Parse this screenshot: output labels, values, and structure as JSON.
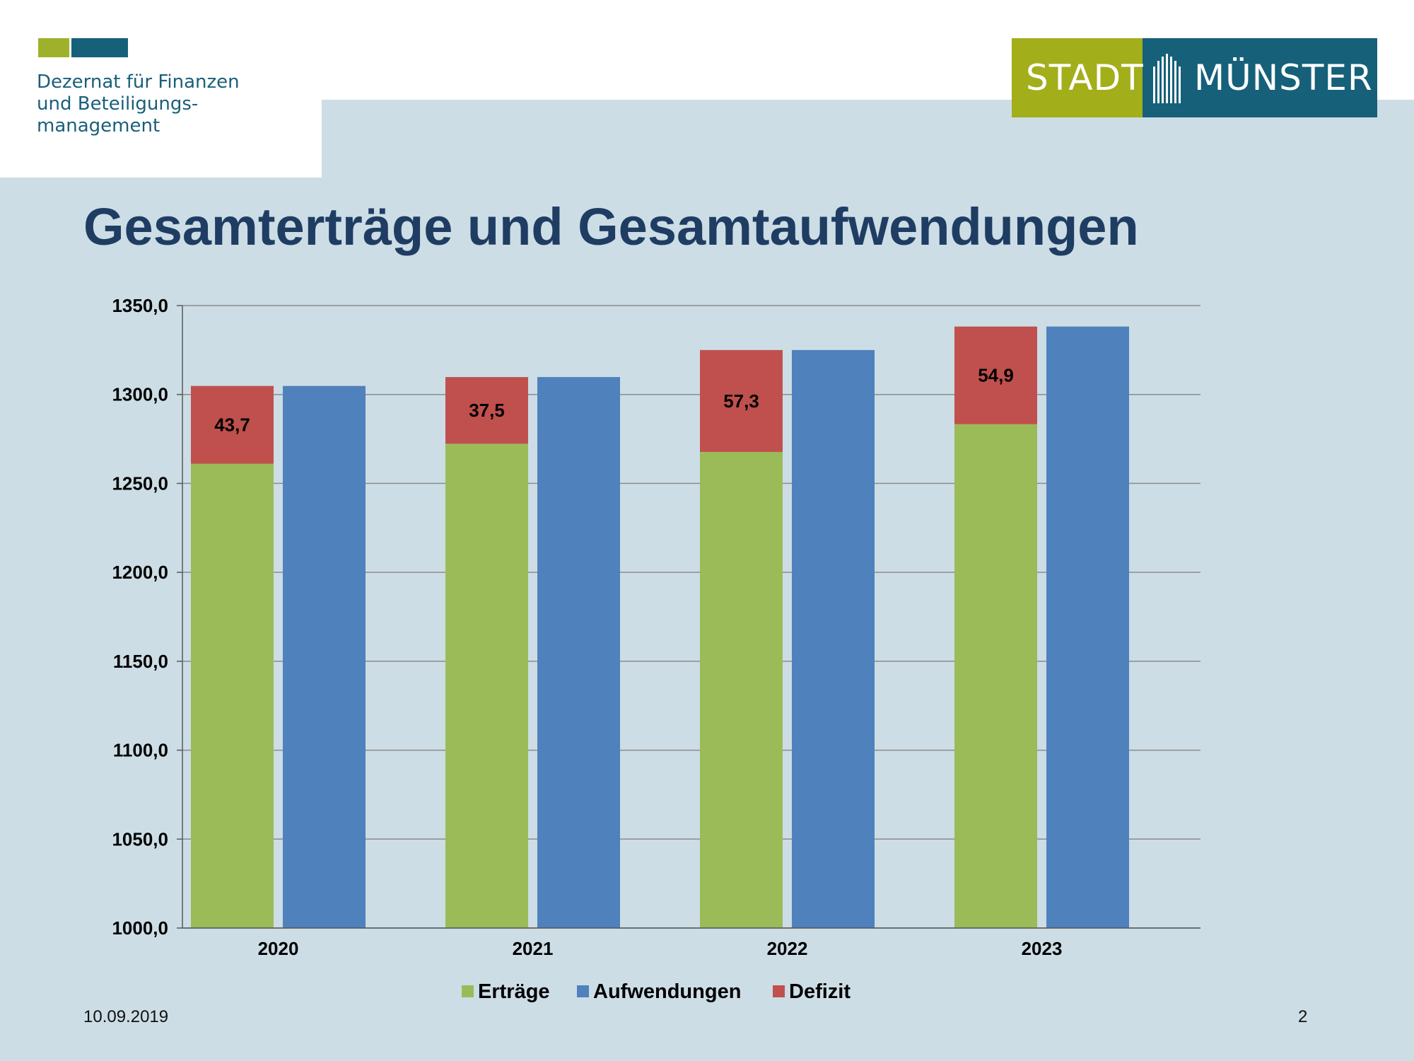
{
  "header": {
    "department": "Dezernat für Finanzen\nund Beteiligungs-\nmanagement",
    "logo": {
      "left_text": "STADT",
      "right_text": "MÜNSTER",
      "pillar_icon": "building-pillars-icon"
    }
  },
  "colors": {
    "accent_green": "#9fb12a",
    "accent_blue": "#16607a",
    "title": "#1f3d63",
    "ertraege": "#9bbb59",
    "aufwendungen": "#4f81bd",
    "defizit": "#c0504d"
  },
  "chart_data": {
    "type": "bar",
    "title": "Gesamterträge und Gesamtaufwendungen",
    "categories": [
      "2020",
      "2021",
      "2022",
      "2023"
    ],
    "series": [
      {
        "name": "Erträge",
        "values": [
          1261.1,
          1272.3,
          1267.7,
          1283.3
        ],
        "stack": "a"
      },
      {
        "name": "Defizit",
        "values": [
          43.7,
          37.5,
          57.3,
          54.9
        ],
        "stack": "a",
        "labels": [
          "43,7",
          "37,5",
          "57,3",
          "54,9"
        ]
      },
      {
        "name": "Aufwendungen",
        "values": [
          1304.8,
          1309.8,
          1325.0,
          1338.2
        ],
        "stack": "b"
      }
    ],
    "legend_order": [
      "Erträge",
      "Aufwendungen",
      "Defizit"
    ],
    "ylim": [
      1000,
      1350
    ],
    "yticks": [
      "1000,0",
      "1050,0",
      "1100,0",
      "1150,0",
      "1200,0",
      "1250,0",
      "1300,0",
      "1350,0"
    ],
    "ytick_values": [
      1000,
      1050,
      1100,
      1150,
      1200,
      1250,
      1300,
      1350
    ],
    "grid": true,
    "legend_position": "bottom",
    "xlabel": "",
    "ylabel": ""
  },
  "footer": {
    "date": "10.09.2019",
    "page": "2"
  }
}
